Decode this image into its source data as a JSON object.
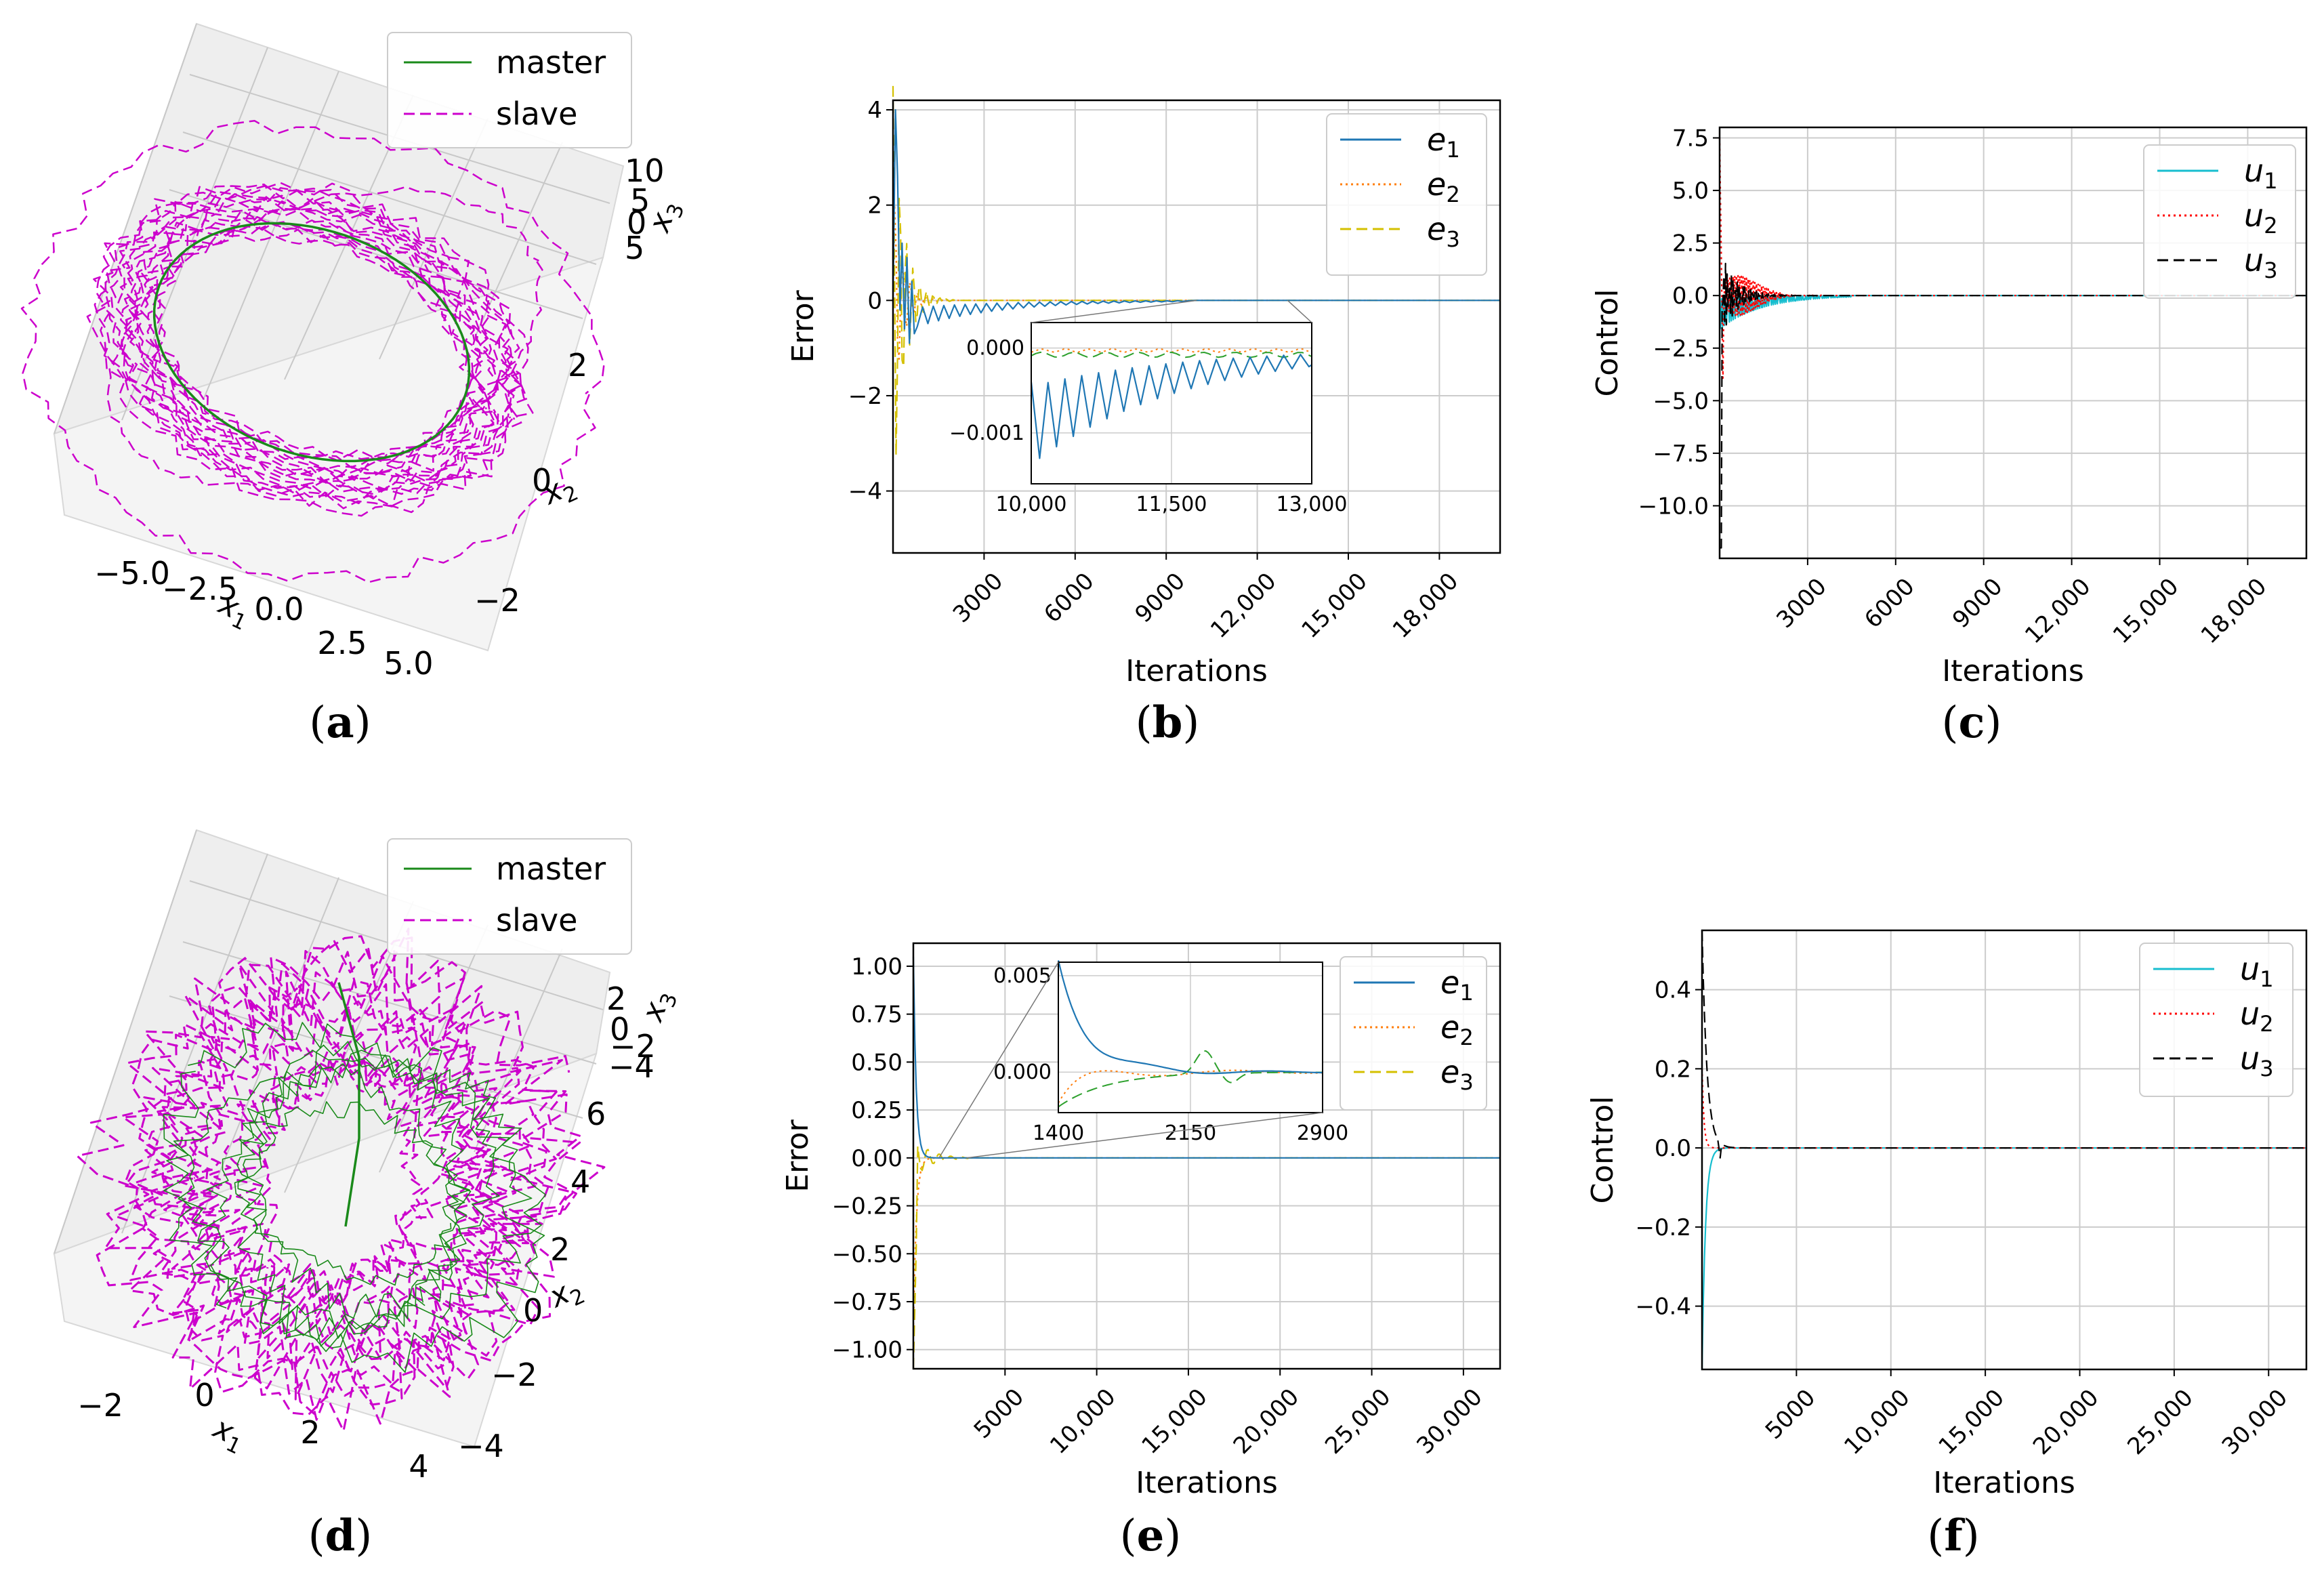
{
  "colors": {
    "master": "#1a8a1a",
    "slave": "#cc00cc",
    "e1": "#1f77b4",
    "e2": "#ff7f0e",
    "e3": "#d4c000",
    "e3_inset": "#2ca02c",
    "u1": "#17becf",
    "u2": "#ff0000",
    "u3": "#000000",
    "grid": "#cccccc",
    "pane": "#eeeeee"
  },
  "chart_data": [
    {
      "id": "a",
      "type": "line3d",
      "panel_label": "a",
      "legend": [
        "master",
        "slave"
      ],
      "series": [
        {
          "name": "master",
          "style": "solid"
        },
        {
          "name": "slave",
          "style": "dashed"
        }
      ],
      "axes": {
        "x": {
          "label": "x",
          "sub": "1",
          "ticks": [
            "−5.0",
            "−2.5",
            "0.0",
            "2.5",
            "5.0"
          ]
        },
        "y": {
          "label": "x",
          "sub": "2",
          "ticks": [
            "2",
            "0",
            "−2"
          ]
        },
        "z": {
          "label": "x",
          "sub": "3",
          "ticks": [
            "10",
            "5",
            "0",
            "5"
          ]
        }
      }
    },
    {
      "id": "b",
      "type": "line",
      "panel_label": "b",
      "xlabel": "Iterations",
      "ylabel": "Error",
      "xlim": [
        0,
        20000
      ],
      "ylim": [
        -5.3,
        4.2
      ],
      "xticks": [
        {
          "v": 3000,
          "label": "3000"
        },
        {
          "v": 6000,
          "label": "6000"
        },
        {
          "v": 9000,
          "label": "9000"
        },
        {
          "v": 12000,
          "label": "12,000"
        },
        {
          "v": 15000,
          "label": "15,000"
        },
        {
          "v": 18000,
          "label": "18,000"
        }
      ],
      "yticks": [
        {
          "v": 4,
          "label": "4"
        },
        {
          "v": 2,
          "label": "2"
        },
        {
          "v": 0,
          "label": "0"
        },
        {
          "v": -2,
          "label": "−2"
        },
        {
          "v": -4,
          "label": "−4"
        }
      ],
      "legend": [
        {
          "name": "e",
          "sub": "1",
          "style": "solid",
          "color": "e1"
        },
        {
          "name": "e",
          "sub": "2",
          "style": "dotted",
          "color": "e2"
        },
        {
          "name": "e",
          "sub": "3",
          "style": "dashed",
          "color": "e3"
        }
      ],
      "inset": {
        "xlim": [
          10000,
          13000
        ],
        "ylim": [
          -0.0016,
          0.0003
        ],
        "xticks": [
          {
            "v": 10000,
            "label": "10,000"
          },
          {
            "v": 11500,
            "label": "11,500"
          },
          {
            "v": 13000,
            "label": "13,000"
          }
        ],
        "yticks": [
          {
            "v": 0,
            "label": "0.000"
          },
          {
            "v": -0.001,
            "label": "−0.001"
          }
        ]
      }
    },
    {
      "id": "c",
      "type": "line",
      "panel_label": "c",
      "xlabel": "Iterations",
      "ylabel": "Control",
      "xlim": [
        0,
        20000
      ],
      "ylim": [
        -12.5,
        8.0
      ],
      "xticks": [
        {
          "v": 3000,
          "label": "3000"
        },
        {
          "v": 6000,
          "label": "6000"
        },
        {
          "v": 9000,
          "label": "9000"
        },
        {
          "v": 12000,
          "label": "12,000"
        },
        {
          "v": 15000,
          "label": "15,000"
        },
        {
          "v": 18000,
          "label": "18,000"
        }
      ],
      "yticks": [
        {
          "v": 7.5,
          "label": "7.5"
        },
        {
          "v": 5.0,
          "label": "5.0"
        },
        {
          "v": 2.5,
          "label": "2.5"
        },
        {
          "v": 0.0,
          "label": "0.0"
        },
        {
          "v": -2.5,
          "label": "−2.5"
        },
        {
          "v": -5.0,
          "label": "−5.0"
        },
        {
          "v": -7.5,
          "label": "−7.5"
        },
        {
          "v": -10.0,
          "label": "−10.0"
        }
      ],
      "legend": [
        {
          "name": "u",
          "sub": "1",
          "style": "solid",
          "color": "u1"
        },
        {
          "name": "u",
          "sub": "2",
          "style": "dotted",
          "color": "u2"
        },
        {
          "name": "u",
          "sub": "3",
          "style": "dashed",
          "color": "u3"
        }
      ]
    },
    {
      "id": "d",
      "type": "line3d",
      "panel_label": "d",
      "legend": [
        "master",
        "slave"
      ],
      "series": [
        {
          "name": "master",
          "style": "solid"
        },
        {
          "name": "slave",
          "style": "dashed"
        }
      ],
      "axes": {
        "x": {
          "label": "x",
          "sub": "1",
          "ticks": [
            "−2",
            "0",
            "2",
            "4"
          ]
        },
        "y": {
          "label": "x",
          "sub": "2",
          "ticks": [
            "6",
            "4",
            "2",
            "0",
            "−2",
            "−4"
          ]
        },
        "z": {
          "label": "x",
          "sub": "3",
          "ticks": [
            "2",
            "0",
            "−2",
            "−4"
          ]
        }
      }
    },
    {
      "id": "e",
      "type": "line",
      "panel_label": "e",
      "xlabel": "Iterations",
      "ylabel": "Error",
      "xlim": [
        0,
        32000
      ],
      "ylim": [
        -1.1,
        1.12
      ],
      "xticks": [
        {
          "v": 5000,
          "label": "5000"
        },
        {
          "v": 10000,
          "label": "10,000"
        },
        {
          "v": 15000,
          "label": "15,000"
        },
        {
          "v": 20000,
          "label": "20,000"
        },
        {
          "v": 25000,
          "label": "25,000"
        },
        {
          "v": 30000,
          "label": "30,000"
        }
      ],
      "yticks": [
        {
          "v": 1.0,
          "label": "1.00"
        },
        {
          "v": 0.75,
          "label": "0.75"
        },
        {
          "v": 0.5,
          "label": "0.50"
        },
        {
          "v": 0.25,
          "label": "0.25"
        },
        {
          "v": 0.0,
          "label": "0.00"
        },
        {
          "v": -0.25,
          "label": "−0.25"
        },
        {
          "v": -0.5,
          "label": "−0.50"
        },
        {
          "v": -0.75,
          "label": "−0.75"
        },
        {
          "v": -1.0,
          "label": "−1.00"
        }
      ],
      "legend": [
        {
          "name": "e",
          "sub": "1",
          "style": "solid",
          "color": "e1"
        },
        {
          "name": "e",
          "sub": "2",
          "style": "dotted",
          "color": "e2"
        },
        {
          "name": "e",
          "sub": "3",
          "style": "dashed",
          "color": "e3"
        }
      ],
      "inset": {
        "xlim": [
          1400,
          2900
        ],
        "ylim": [
          -0.0021,
          0.0057
        ],
        "xticks": [
          {
            "v": 1400,
            "label": "1400"
          },
          {
            "v": 2150,
            "label": "2150"
          },
          {
            "v": 2900,
            "label": "2900"
          }
        ],
        "yticks": [
          {
            "v": 0.005,
            "label": "0.005"
          },
          {
            "v": 0,
            "label": "0.000"
          }
        ]
      }
    },
    {
      "id": "f",
      "type": "line",
      "panel_label": "f",
      "xlabel": "Iterations",
      "ylabel": "Control",
      "xlim": [
        0,
        32000
      ],
      "ylim": [
        -0.56,
        0.55
      ],
      "xticks": [
        {
          "v": 5000,
          "label": "5000"
        },
        {
          "v": 10000,
          "label": "10,000"
        },
        {
          "v": 15000,
          "label": "15,000"
        },
        {
          "v": 20000,
          "label": "20,000"
        },
        {
          "v": 25000,
          "label": "25,000"
        },
        {
          "v": 30000,
          "label": "30,000"
        }
      ],
      "yticks": [
        {
          "v": 0.4,
          "label": "0.4"
        },
        {
          "v": 0.2,
          "label": "0.2"
        },
        {
          "v": 0.0,
          "label": "0.0"
        },
        {
          "v": -0.2,
          "label": "−0.2"
        },
        {
          "v": -0.4,
          "label": "−0.4"
        }
      ],
      "legend": [
        {
          "name": "u",
          "sub": "1",
          "style": "solid",
          "color": "u1"
        },
        {
          "name": "u",
          "sub": "2",
          "style": "dotted",
          "color": "u2"
        },
        {
          "name": "u",
          "sub": "3",
          "style": "dashed",
          "color": "u3"
        }
      ]
    }
  ]
}
